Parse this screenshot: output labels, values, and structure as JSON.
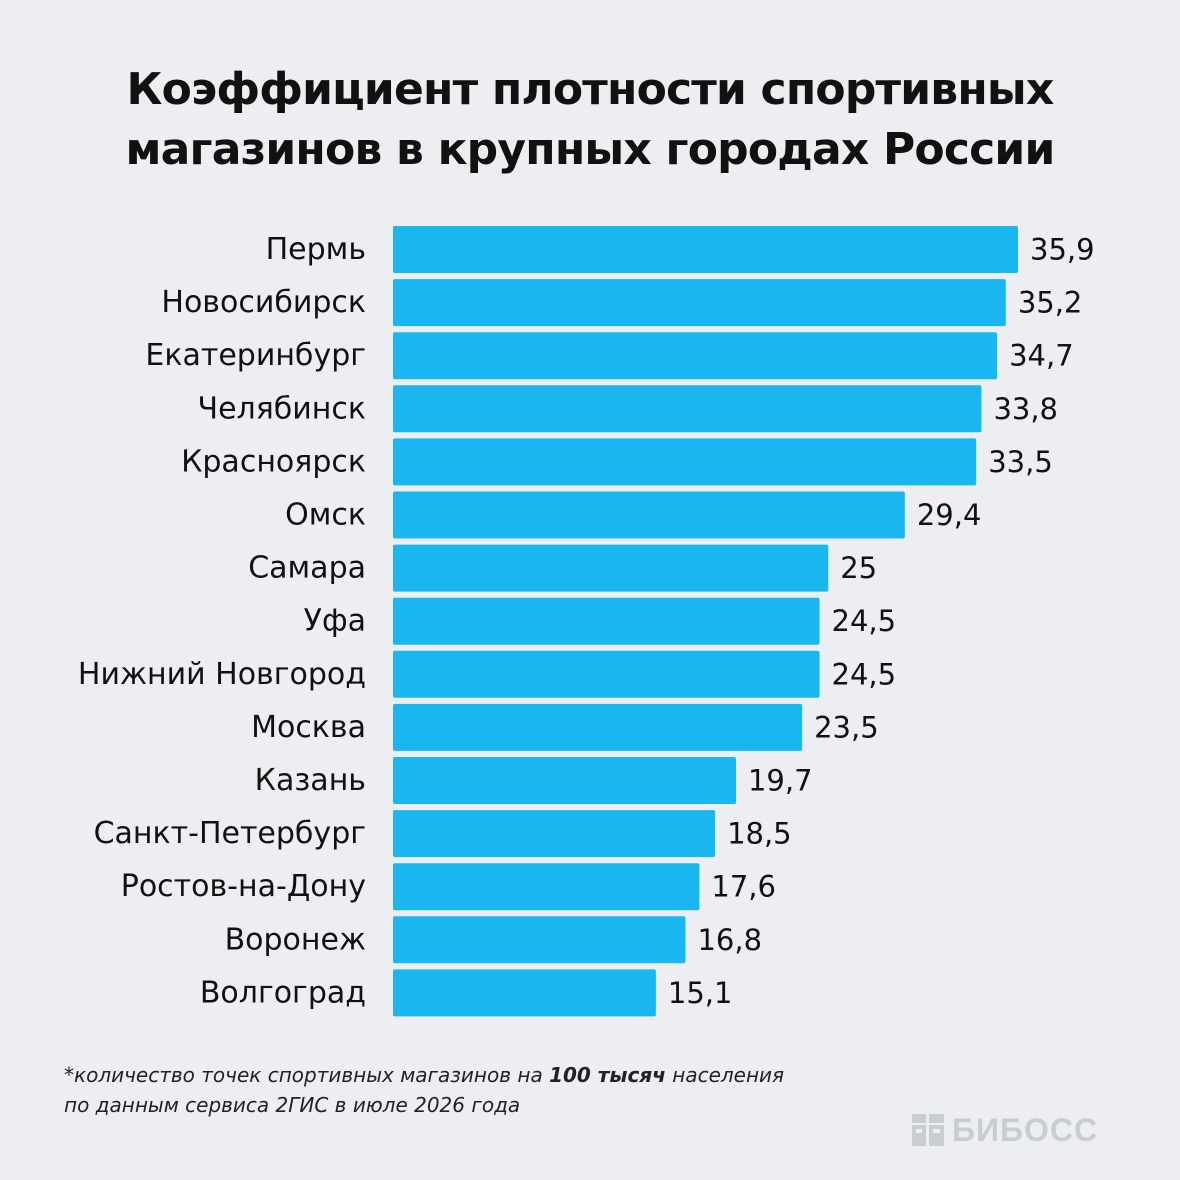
{
  "title": {
    "line1": "Коэффициент плотности спортивных",
    "line2": "магазинов в крупных городах России"
  },
  "chart_data": {
    "type": "bar",
    "orientation": "horizontal",
    "categories": [
      "Пермь",
      "Новосибирск",
      "Екатеринбург",
      "Челябинск",
      "Красноярск",
      "Омск",
      "Самара",
      "Уфа",
      "Нижний Новгород",
      "Москва",
      "Казань",
      "Санкт-Петербург",
      "Ростов-на-Дону",
      "Воронеж",
      "Волгоград"
    ],
    "values": [
      35.9,
      35.2,
      34.7,
      33.8,
      33.5,
      29.4,
      25,
      24.5,
      24.5,
      23.5,
      19.7,
      18.5,
      17.6,
      16.8,
      15.1
    ],
    "value_labels": [
      "35,9",
      "35,2",
      "34,7",
      "33,8",
      "33,5",
      "29,4",
      "25",
      "24,5",
      "24,5",
      "23,5",
      "19,7",
      "18,5",
      "17,6",
      "16,8",
      "15,1"
    ],
    "xlim": [
      0,
      35.9
    ],
    "grid": false,
    "legend": "none",
    "colors": {
      "bar": "#1ab6ef"
    }
  },
  "footnote": {
    "before_bold": "*количество точек спортивных магазинов на ",
    "bold": "100 тысяч",
    "after_bold": " населения",
    "line2": "по данным сервиса 2ГИС в июле 2026 года"
  },
  "brand": {
    "name": "БИБОСС",
    "color": "#c9cdd3",
    "icon": "bb-logo-icon"
  }
}
